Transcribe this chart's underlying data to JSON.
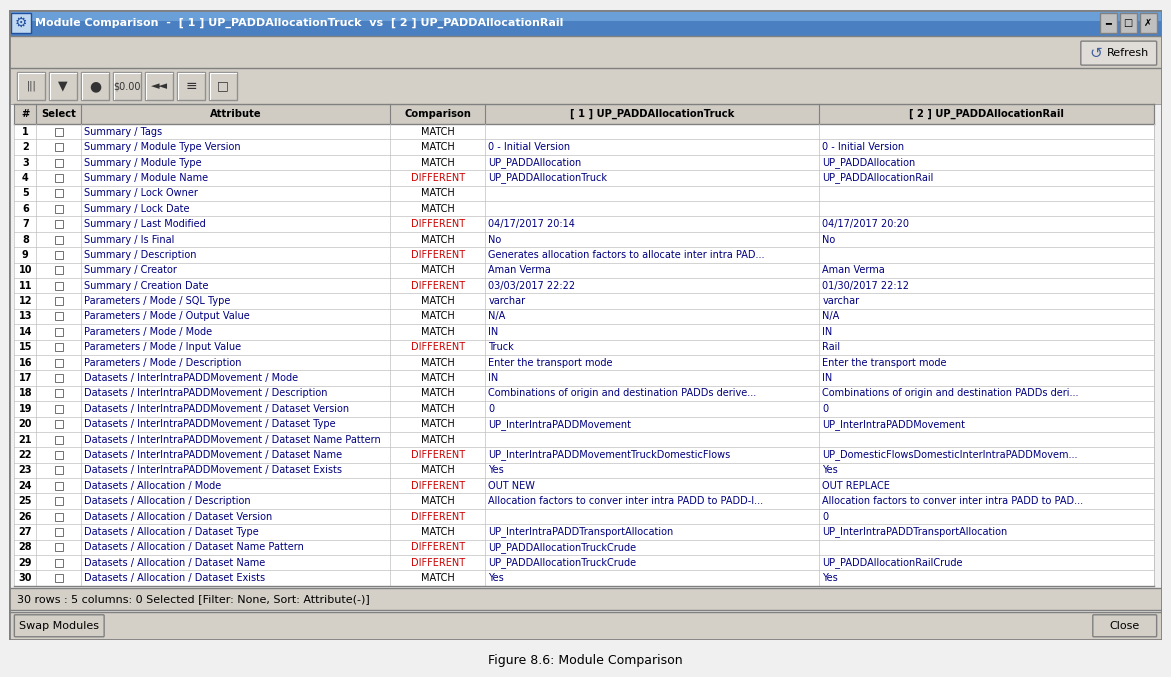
{
  "title": "Module Comparison  -  [ 1 ] UP_PADDAllocationTruck  vs  [ 2 ] UP_PADDAllocationRail",
  "fig_title": "Figure 8.6: Module Comparison",
  "columns": [
    "#",
    "Select",
    "Attribute",
    "Comparison",
    "[ 1 ] UP_PADDAllocationTruck",
    "[ 2 ] UP_PADDAllocationRail"
  ],
  "rows": [
    [
      "1",
      "",
      "Summary / Tags",
      "MATCH",
      "",
      ""
    ],
    [
      "2",
      "",
      "Summary / Module Type Version",
      "MATCH",
      "0 - Initial Version",
      "0 - Initial Version"
    ],
    [
      "3",
      "",
      "Summary / Module Type",
      "MATCH",
      "UP_PADDAllocation",
      "UP_PADDAllocation"
    ],
    [
      "4",
      "",
      "Summary / Module Name",
      "DIFFERENT",
      "UP_PADDAllocationTruck",
      "UP_PADDAllocationRail"
    ],
    [
      "5",
      "",
      "Summary / Lock Owner",
      "MATCH",
      "",
      ""
    ],
    [
      "6",
      "",
      "Summary / Lock Date",
      "MATCH",
      "",
      ""
    ],
    [
      "7",
      "",
      "Summary / Last Modified",
      "DIFFERENT",
      "04/17/2017 20:14",
      "04/17/2017 20:20"
    ],
    [
      "8",
      "",
      "Summary / Is Final",
      "MATCH",
      "No",
      "No"
    ],
    [
      "9",
      "",
      "Summary / Description",
      "DIFFERENT",
      "Generates allocation factors to allocate inter intra PAD...",
      ""
    ],
    [
      "10",
      "",
      "Summary / Creator",
      "MATCH",
      "Aman Verma",
      "Aman Verma"
    ],
    [
      "11",
      "",
      "Summary / Creation Date",
      "DIFFERENT",
      "03/03/2017 22:22",
      "01/30/2017 22:12"
    ],
    [
      "12",
      "",
      "Parameters / Mode / SQL Type",
      "MATCH",
      "varchar",
      "varchar"
    ],
    [
      "13",
      "",
      "Parameters / Mode / Output Value",
      "MATCH",
      "N/A",
      "N/A"
    ],
    [
      "14",
      "",
      "Parameters / Mode / Mode",
      "MATCH",
      "IN",
      "IN"
    ],
    [
      "15",
      "",
      "Parameters / Mode / Input Value",
      "DIFFERENT",
      "Truck",
      "Rail"
    ],
    [
      "16",
      "",
      "Parameters / Mode / Description",
      "MATCH",
      "Enter the transport mode",
      "Enter the transport mode"
    ],
    [
      "17",
      "",
      "Datasets / InterIntraPADDMovement / Mode",
      "MATCH",
      "IN",
      "IN"
    ],
    [
      "18",
      "",
      "Datasets / InterIntraPADDMovement / Description",
      "MATCH",
      "Combinations of origin and destination PADDs derive...",
      "Combinations of origin and destination PADDs deri..."
    ],
    [
      "19",
      "",
      "Datasets / InterIntraPADDMovement / Dataset Version",
      "MATCH",
      "0",
      "0"
    ],
    [
      "20",
      "",
      "Datasets / InterIntraPADDMovement / Dataset Type",
      "MATCH",
      "UP_InterIntraPADDMovement",
      "UP_InterIntraPADDMovement"
    ],
    [
      "21",
      "",
      "Datasets / InterIntraPADDMovement / Dataset Name Pattern",
      "MATCH",
      "",
      ""
    ],
    [
      "22",
      "",
      "Datasets / InterIntraPADDMovement / Dataset Name",
      "DIFFERENT",
      "UP_InterIntraPADDMovementTruckDomesticFlows",
      "UP_DomesticFlowsDomesticInterIntraPADDMovem..."
    ],
    [
      "23",
      "",
      "Datasets / InterIntraPADDMovement / Dataset Exists",
      "MATCH",
      "Yes",
      "Yes"
    ],
    [
      "24",
      "",
      "Datasets / Allocation / Mode",
      "DIFFERENT",
      "OUT NEW",
      "OUT REPLACE"
    ],
    [
      "25",
      "",
      "Datasets / Allocation / Description",
      "MATCH",
      "Allocation factors to conver inter intra PADD to PADD-I...",
      "Allocation factors to conver inter intra PADD to PAD..."
    ],
    [
      "26",
      "",
      "Datasets / Allocation / Dataset Version",
      "DIFFERENT",
      "",
      "0"
    ],
    [
      "27",
      "",
      "Datasets / Allocation / Dataset Type",
      "MATCH",
      "UP_InterIntraPADDTransportAllocation",
      "UP_InterIntraPADDTransportAllocation"
    ],
    [
      "28",
      "",
      "Datasets / Allocation / Dataset Name Pattern",
      "DIFFERENT",
      "UP_PADDAllocationTruckCrude",
      ""
    ],
    [
      "29",
      "",
      "Datasets / Allocation / Dataset Name",
      "DIFFERENT",
      "UP_PADDAllocationTruckCrude",
      "UP_PADDAllocationRailCrude"
    ],
    [
      "30",
      "",
      "Datasets / Allocation / Dataset Exists",
      "MATCH",
      "Yes",
      "Yes"
    ]
  ],
  "status_bar": "30 rows : 5 columns: 0 Selected [Filter: None, Sort: Attribute(-)]",
  "bg_color": "#d4d0c8",
  "match_color": "#000000",
  "different_color": "#cc0000",
  "cell_text_color": "#000080",
  "fig_caption": "Figure 8.6: Module Comparison"
}
